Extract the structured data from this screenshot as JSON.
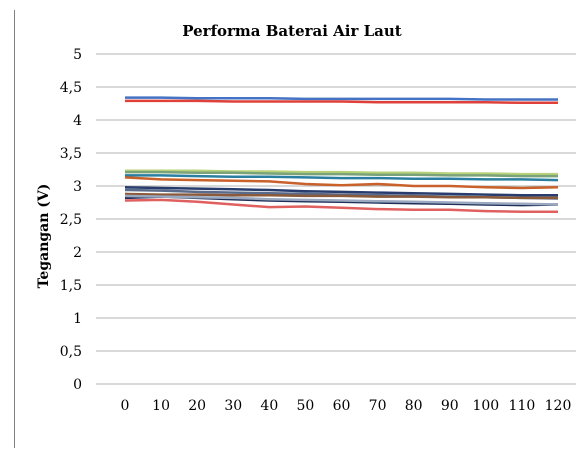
{
  "chart_data": {
    "type": "line",
    "title": "Performa Baterai Air Laut",
    "xlabel": "",
    "ylabel": "Tegangan (V)",
    "x": [
      0,
      10,
      20,
      30,
      40,
      50,
      60,
      70,
      80,
      90,
      100,
      110,
      120
    ],
    "y_ticks": [
      "0",
      "0,5",
      "1",
      "1,5",
      "2",
      "2,5",
      "3",
      "3,5",
      "4",
      "4,5",
      "5"
    ],
    "ylim": [
      0,
      5
    ],
    "grid": true,
    "legend": "none",
    "series": [
      {
        "color": "#4472c4",
        "values": [
          4.34,
          4.34,
          4.33,
          4.33,
          4.33,
          4.32,
          4.32,
          4.32,
          4.32,
          4.32,
          4.31,
          4.31,
          4.31
        ]
      },
      {
        "color": "#e0403a",
        "values": [
          4.29,
          4.29,
          4.29,
          4.28,
          4.28,
          4.28,
          4.28,
          4.27,
          4.27,
          4.27,
          4.27,
          4.26,
          4.26
        ]
      },
      {
        "color": "#b8d27a",
        "values": [
          3.23,
          3.23,
          3.23,
          3.22,
          3.22,
          3.21,
          3.21,
          3.2,
          3.2,
          3.19,
          3.19,
          3.18,
          3.18
        ]
      },
      {
        "color": "#7aa37a",
        "values": [
          3.21,
          3.21,
          3.2,
          3.2,
          3.19,
          3.18,
          3.18,
          3.17,
          3.17,
          3.16,
          3.16,
          3.15,
          3.15
        ]
      },
      {
        "color": "#2a7fa0",
        "values": [
          3.16,
          3.16,
          3.15,
          3.14,
          3.14,
          3.13,
          3.12,
          3.12,
          3.11,
          3.11,
          3.1,
          3.1,
          3.09
        ]
      },
      {
        "color": "#c9612a",
        "values": [
          3.13,
          3.1,
          3.09,
          3.08,
          3.07,
          3.03,
          3.01,
          3.03,
          3.0,
          3.0,
          2.98,
          2.97,
          2.98
        ]
      },
      {
        "color": "#283d6e",
        "values": [
          2.98,
          2.97,
          2.96,
          2.95,
          2.94,
          2.92,
          2.91,
          2.9,
          2.89,
          2.88,
          2.87,
          2.86,
          2.86
        ]
      },
      {
        "color": "#5a6a8a",
        "values": [
          2.94,
          2.93,
          2.91,
          2.9,
          2.89,
          2.88,
          2.87,
          2.86,
          2.85,
          2.84,
          2.83,
          2.82,
          2.81
        ]
      },
      {
        "color": "#8a5a3a",
        "values": [
          2.88,
          2.87,
          2.87,
          2.86,
          2.86,
          2.85,
          2.85,
          2.84,
          2.84,
          2.83,
          2.83,
          2.82,
          2.82
        ]
      },
      {
        "color": "#1e2f5a",
        "values": [
          2.82,
          2.84,
          2.82,
          2.8,
          2.78,
          2.77,
          2.76,
          2.75,
          2.74,
          2.73,
          2.72,
          2.71,
          2.72
        ]
      },
      {
        "color": "#9aa8c0",
        "values": [
          2.85,
          2.84,
          2.83,
          2.82,
          2.8,
          2.79,
          2.78,
          2.77,
          2.76,
          2.75,
          2.74,
          2.73,
          2.72
        ]
      },
      {
        "color": "#e06060",
        "values": [
          2.78,
          2.79,
          2.76,
          2.72,
          2.68,
          2.69,
          2.67,
          2.65,
          2.64,
          2.64,
          2.62,
          2.61,
          2.61
        ]
      }
    ]
  }
}
